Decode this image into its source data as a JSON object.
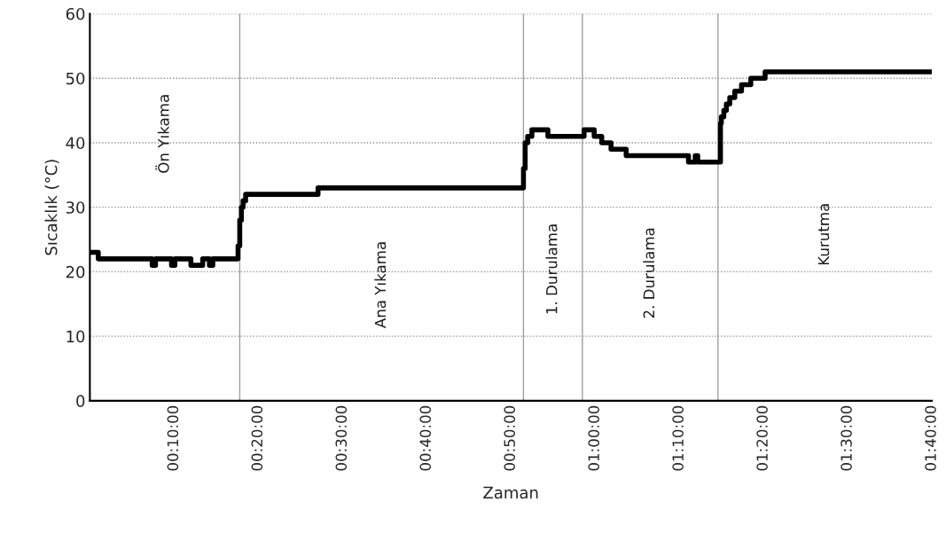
{
  "chart_data": {
    "type": "step",
    "xlabel": "Zaman",
    "ylabel": "Sıcaklık (°C)",
    "x": [
      0,
      1.0,
      7.4,
      7.8,
      9.7,
      10.1,
      12.0,
      13.4,
      14.2,
      14.6,
      17.6,
      17.8,
      18.0,
      18.2,
      18.5,
      27.1,
      51.5,
      51.7,
      52.0,
      52.5,
      54.4,
      58.7,
      59.9,
      60.8,
      61.9,
      63.7,
      71.1,
      71.9,
      72.2,
      74.9,
      75.0,
      75.3,
      75.6,
      76.0,
      76.6,
      77.4,
      78.5,
      80.2,
      84.1,
      100
    ],
    "series": [
      {
        "color": "#000000",
        "values": [
          23,
          22,
          21,
          22,
          21,
          22,
          21,
          22,
          21,
          22,
          24,
          28,
          30,
          31,
          32,
          33,
          36,
          40,
          41,
          42,
          41,
          42,
          41,
          40,
          39,
          38,
          37,
          38,
          37,
          43,
          44,
          45,
          46,
          47,
          48,
          49,
          50,
          51,
          51,
          51
        ]
      }
    ],
    "xlim": [
      0,
      100
    ],
    "xticks": [
      {
        "value": 10,
        "label": "00:10:00"
      },
      {
        "value": 20,
        "label": "00:20:00"
      },
      {
        "value": 30,
        "label": "00:30:00"
      },
      {
        "value": 40,
        "label": "00:40:00"
      },
      {
        "value": 50,
        "label": "00:50:00"
      },
      {
        "value": 60,
        "label": "01:00:00"
      },
      {
        "value": 70,
        "label": "01:10:00"
      },
      {
        "value": 80,
        "label": "01:20:00"
      },
      {
        "value": 90,
        "label": "01:30:00"
      },
      {
        "value": 100,
        "label": "01:40:00"
      }
    ],
    "ylim": [
      0,
      60
    ],
    "yticks": [
      0,
      10,
      20,
      30,
      40,
      50,
      60
    ],
    "grid": "y",
    "ref_lines": [
      {
        "axis": "x",
        "value": 17.8,
        "color": "#a0a0a0"
      },
      {
        "axis": "x",
        "value": 51.5,
        "color": "#a0a0a0"
      },
      {
        "axis": "x",
        "value": 58.5,
        "color": "#a0a0a0"
      },
      {
        "axis": "x",
        "value": 74.6,
        "color": "#a0a0a0"
      }
    ],
    "annotations": [
      "Ön Yıkama",
      "Ana Yıkama",
      "1. Durulama",
      "2. Durulama",
      "Kurutma"
    ]
  }
}
